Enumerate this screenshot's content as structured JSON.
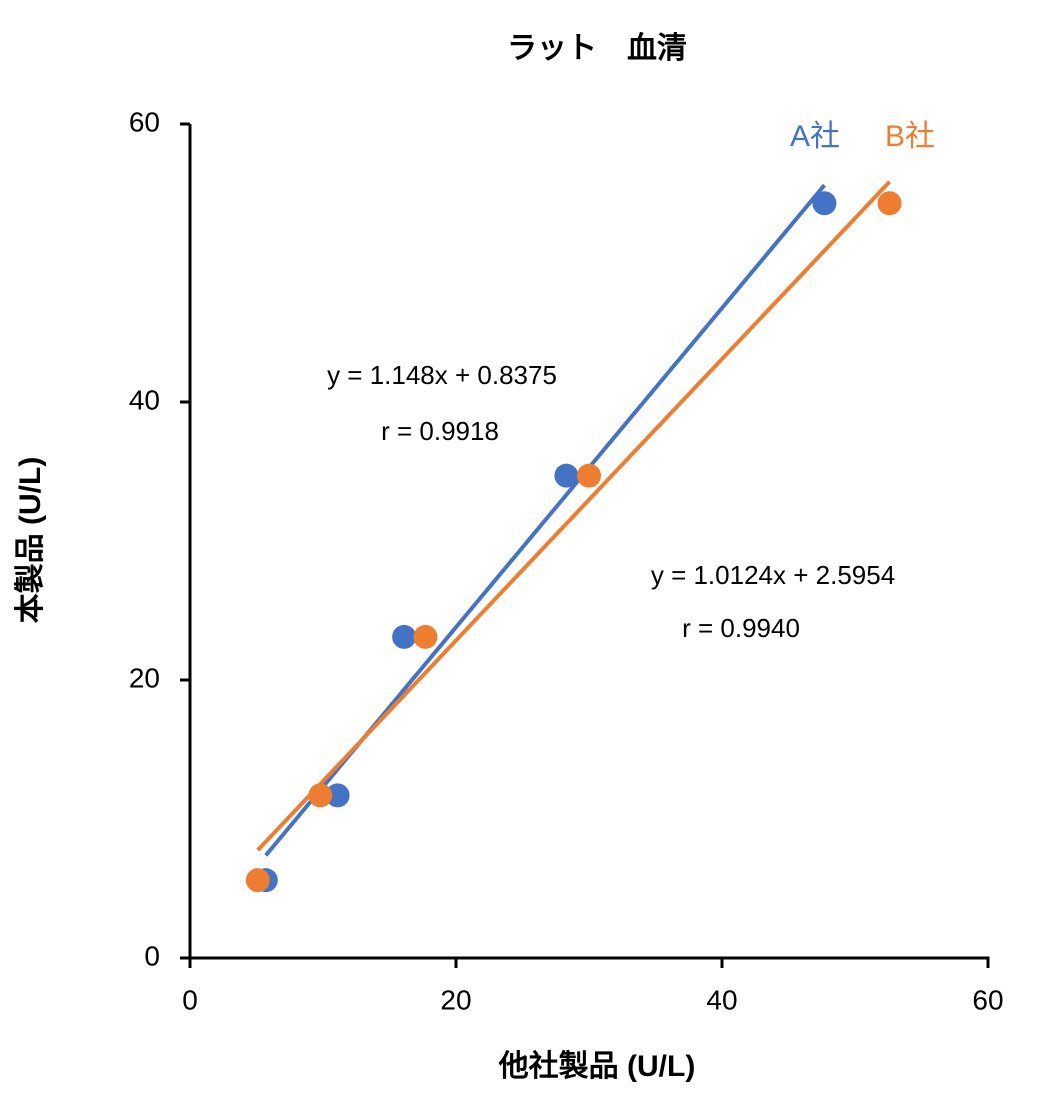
{
  "chart_data": {
    "type": "scatter",
    "title": "ラット　血清",
    "x_label": "他社製品 (U/L)",
    "y_label": "本製品 (U/L)",
    "xlim": [
      0,
      60
    ],
    "ylim": [
      0,
      60
    ],
    "xticks": [
      0,
      20,
      40,
      60
    ],
    "yticks": [
      0,
      20,
      40,
      60
    ],
    "series": [
      {
        "name": "A社",
        "color": "#4472c4",
        "x": [
          5.7,
          11.1,
          16.1,
          28.3,
          47.7
        ],
        "values": [
          5.6,
          11.7,
          23.1,
          34.7,
          54.3
        ],
        "trendline": {
          "slope": 1.148,
          "intercept": 0.8375,
          "equation": "y = 1.148x + 0.8375",
          "r_label": "r = 0.9918"
        }
      },
      {
        "name": "B社",
        "color": "#ed7d31",
        "x": [
          5.1,
          9.8,
          17.7,
          30.0,
          52.6
        ],
        "values": [
          5.6,
          11.7,
          23.1,
          34.7,
          54.3
        ],
        "trendline": {
          "slope": 1.0124,
          "intercept": 2.5954,
          "equation": "y = 1.0124x + 2.5954",
          "r_label": "r = 0.9940"
        }
      }
    ]
  }
}
